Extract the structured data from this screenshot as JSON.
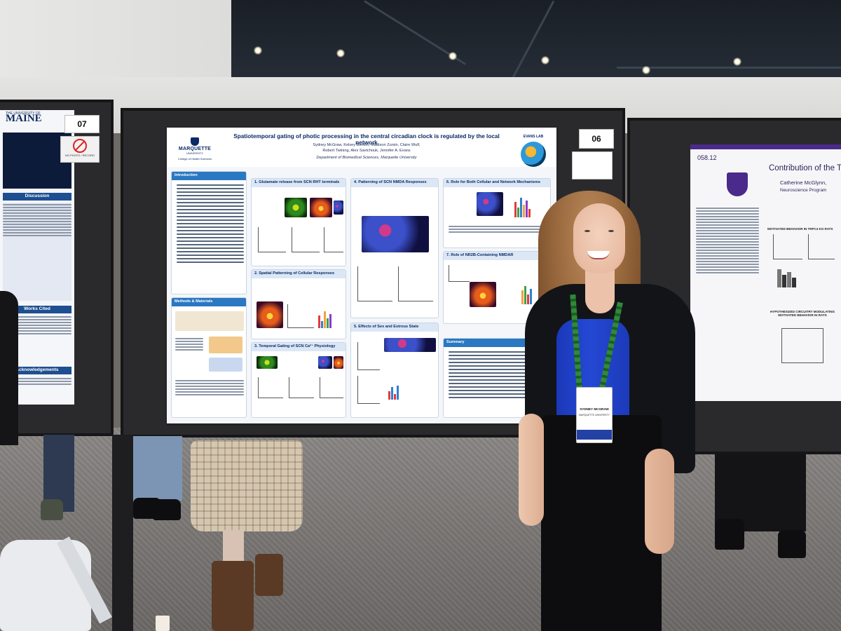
{
  "scene": "Poster presentation at a scientific conference",
  "main_poster": {
    "board_number": "06",
    "university": "MARQUETTE",
    "university_sub": "UNIVERSITY",
    "college": "College of Health Sciences",
    "lab": "EVANS LAB",
    "title": "Spatiotemporal gating of photic processing in the central circadian clock is regulated by the local network",
    "authors_line1": "Sydney McGraw, Kelsey Benton, Madison Zursin, Claire Wulf,",
    "authors_line2": "Robert Twining, Alex Savtchouk, Jennifer A. Evans",
    "department": "Department of Biomedical Sciences, Marquette University",
    "sections": {
      "introduction": "Introduction",
      "methods": "Methods & Materials",
      "glutamate": "1. Glutamate release from SCN RHT terminals",
      "spatial": "2. Spatial Patterning of Cellular Responses",
      "temporal": "3. Temporal Gating of SCN Ca²⁺ Physiology",
      "nmda": "4. Patterning of SCN NMDA Responses",
      "sex": "5. Effects of Sex and Estrous State",
      "cellular_network": "6. Role for Both Cellular and Network Mechanisms",
      "nr2b": "7. Role of NR2B-Containing NMDAR",
      "summary": "Summary"
    }
  },
  "left_poster": {
    "board_number": "07",
    "university_small": "THE UNIVERSITY OF",
    "university": "MAINE",
    "sections": {
      "discussion": "Discussion",
      "works_cited": "Works Cited",
      "acknowledgements": "Acknowledgements"
    },
    "sign_caption": "NO PHOTO / RECORD"
  },
  "right_poster": {
    "code": "058.12",
    "title": "Contribution of the TRP",
    "author": "Catherine McGlynn,",
    "program": "Neuroscience Program",
    "panel_motivated": "MOTIVATED BEHAVIOR IN TRPC4 KO RATS",
    "panel_hypo": "HYPOTHESIZED CIRCUITRY MODULATING MOTIVATED BEHAVIOR IN RATS"
  },
  "presenter": {
    "badge_name": "SYDNEY MCGRAW",
    "badge_institution": "MARQUETTE UNIVERSITY"
  },
  "colors": {
    "poster_blue": "#2a78c2",
    "poster_navy": "#0a2a66",
    "presenter_top": "#2548d4",
    "lanyard": "#2f8a3a"
  }
}
